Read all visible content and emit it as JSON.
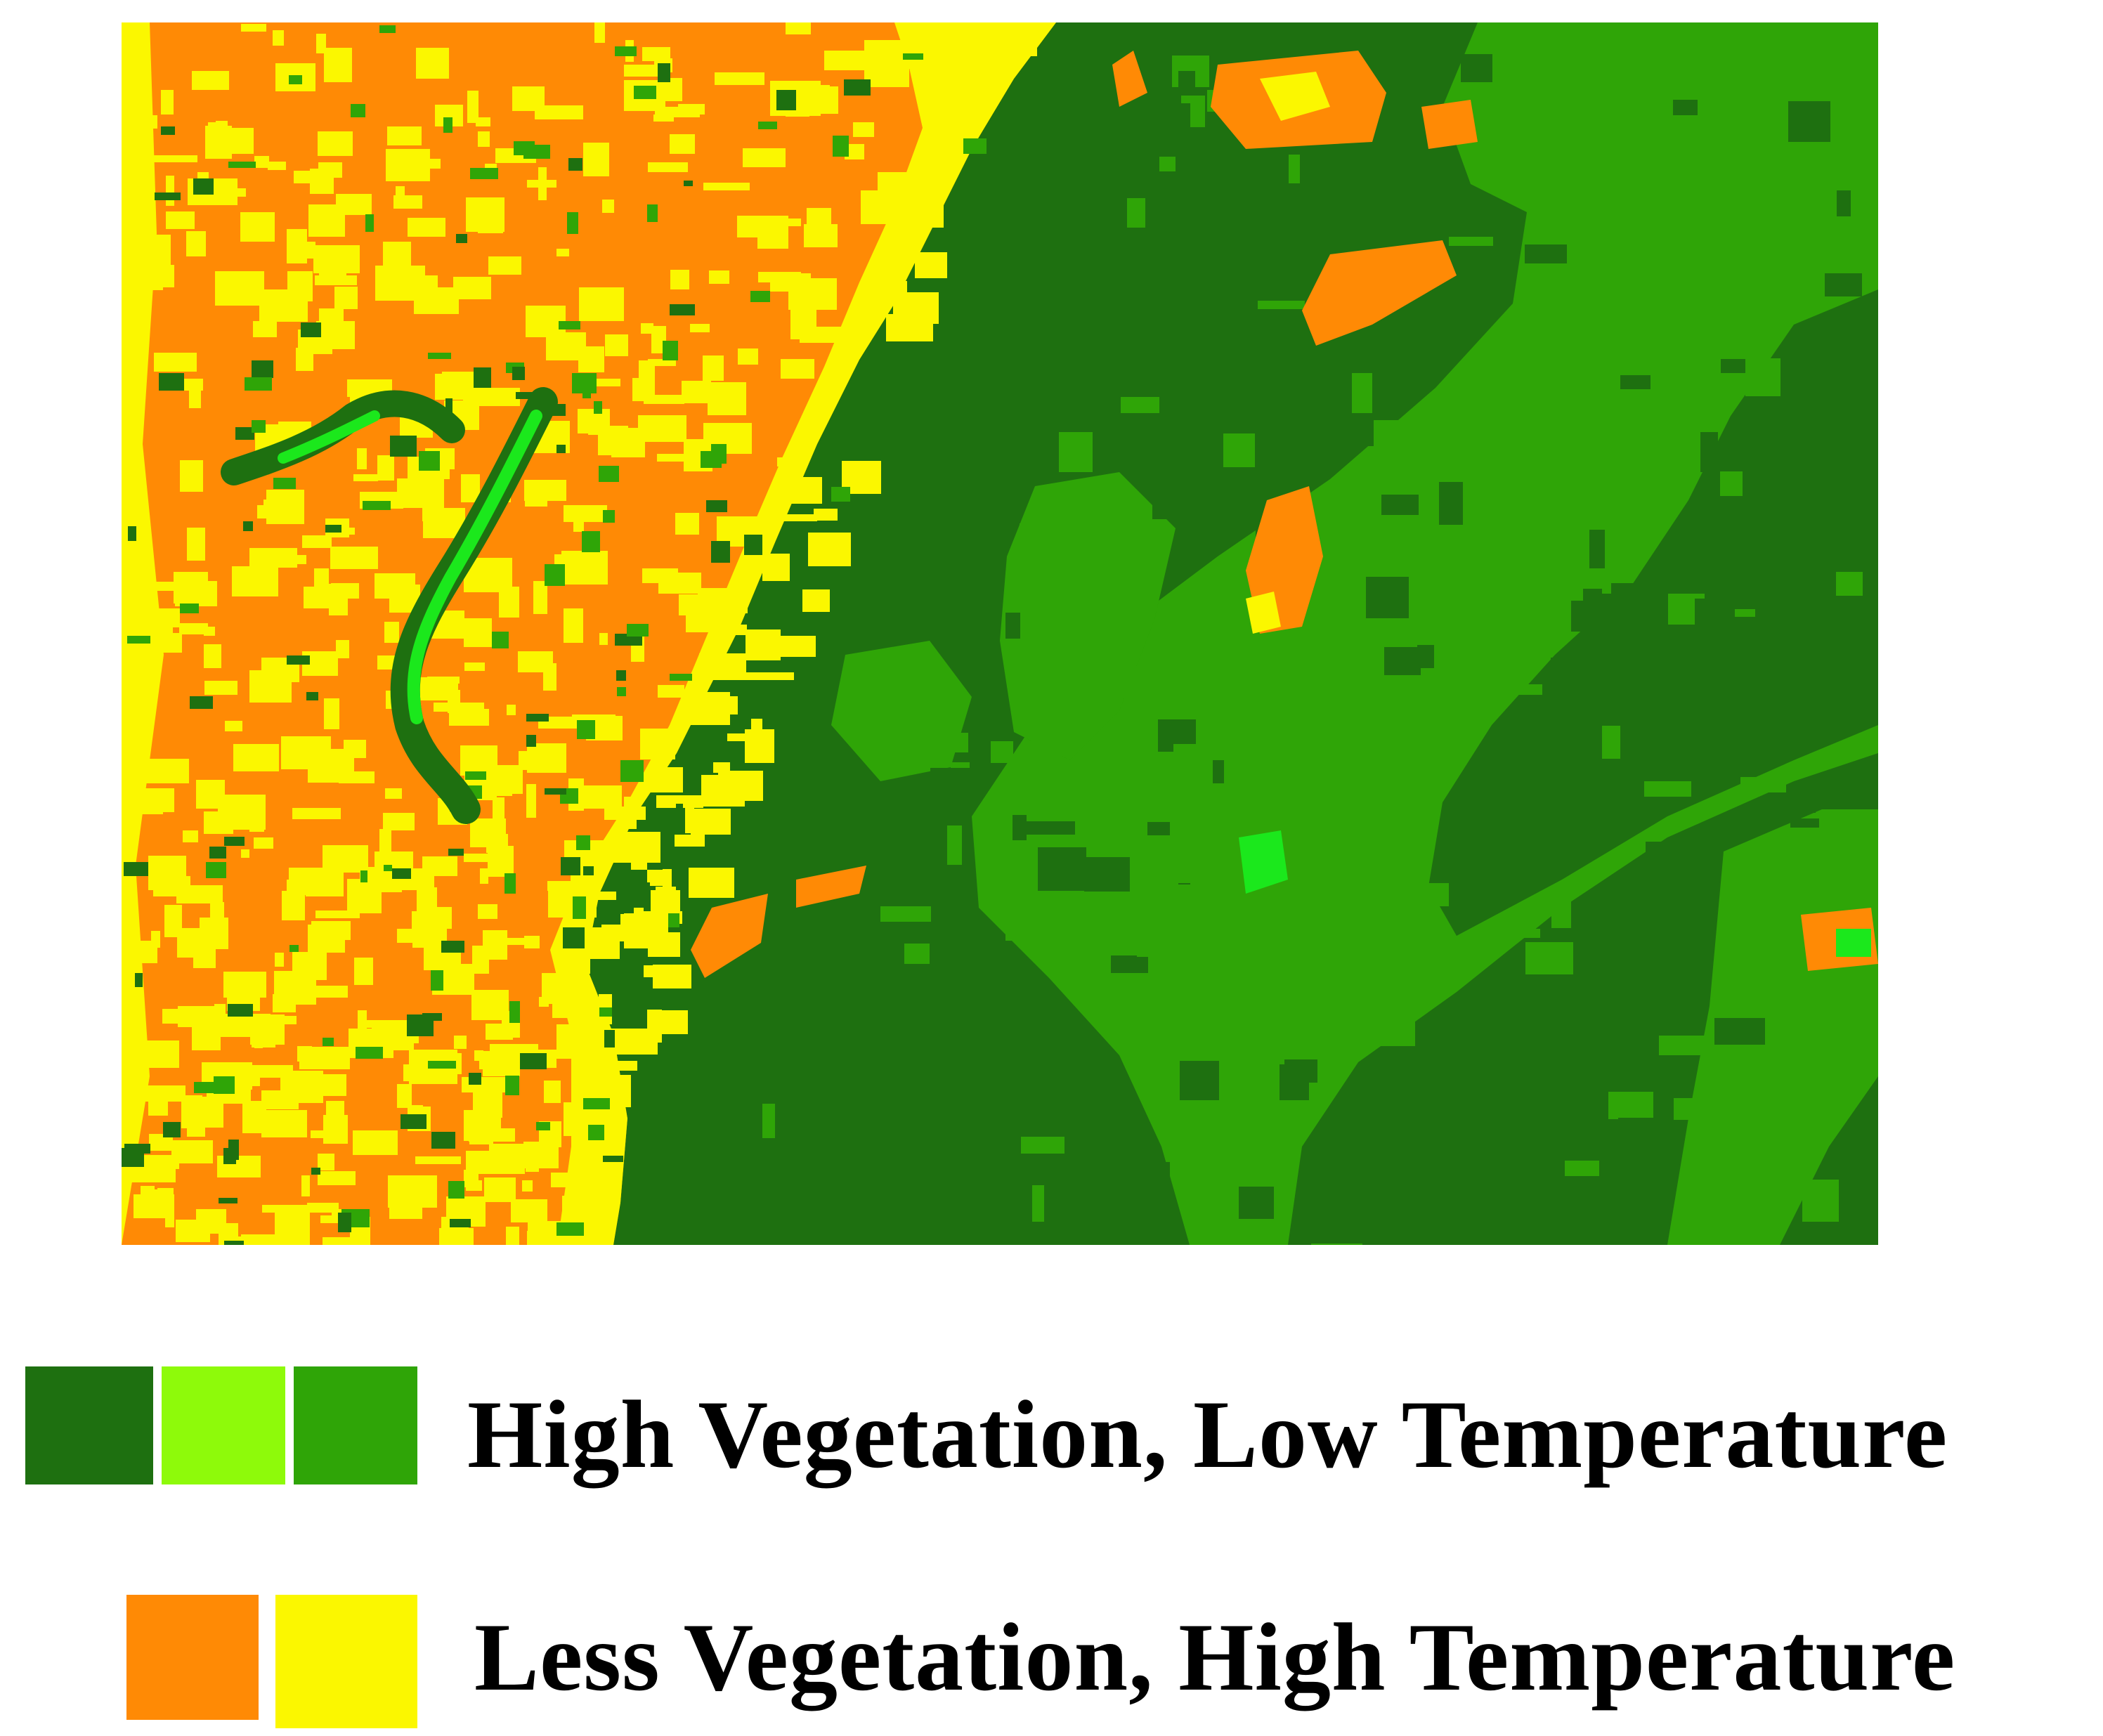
{
  "colors": {
    "dark_green": "#1e7010",
    "light_green": "#8efa0a",
    "mid_green": "#2fa507",
    "bright_green": "#1be81c",
    "orange": "#ff8a05",
    "yellow": "#fbf700"
  },
  "legend": [
    {
      "label": "High Vegetation, Low Temperature",
      "swatches": [
        "dark_green",
        "light_green",
        "mid_green"
      ]
    },
    {
      "label": "Less Vegetation, High Temperature",
      "swatches": [
        "orange",
        "yellow"
      ]
    }
  ]
}
